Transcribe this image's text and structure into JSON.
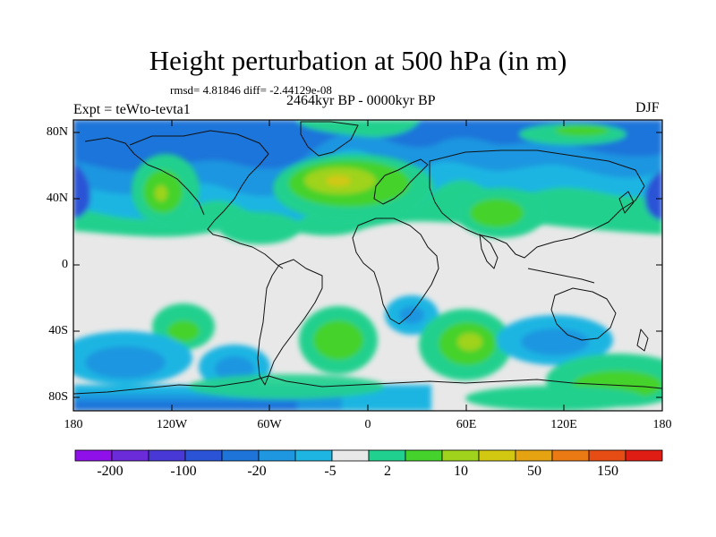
{
  "title": "Height perturbation at 500 hPa (in m)",
  "stats": "rmsd= 4.81846 diff= -2.44129e-08",
  "experiment": "Expt = teWto-tevta1",
  "period": "2464kyr BP - 0000kyr BP",
  "season": "DJF",
  "lat_labels": [
    "80N",
    "40N",
    "0",
    "40S",
    "80S"
  ],
  "lon_labels": [
    "180",
    "120W",
    "60W",
    "0",
    "60E",
    "120E",
    "180"
  ],
  "colorbar": {
    "labels": [
      "-200",
      "-100",
      "-20",
      "-5",
      "2",
      "10",
      "50",
      "150"
    ],
    "colors": [
      "#8f10e8",
      "#6b2bd8",
      "#4838d6",
      "#2a53d6",
      "#1f74da",
      "#1e96e0",
      "#1fb5e2",
      "#e8e8e8",
      "#20d08e",
      "#45d22c",
      "#9fd31c",
      "#d2c812",
      "#e5a312",
      "#ea7b14",
      "#e64d14",
      "#e01d14"
    ]
  },
  "map_colors": {
    "neutral": "#e8e8e8",
    "light_blue": "#1fb5e2",
    "mid_blue": "#1e96e0",
    "blue": "#1f74da",
    "dark_blue": "#2a53d6",
    "mint": "#20d08e",
    "green": "#45d22c",
    "yellow_green": "#9fd31c",
    "olive": "#d2c812"
  }
}
